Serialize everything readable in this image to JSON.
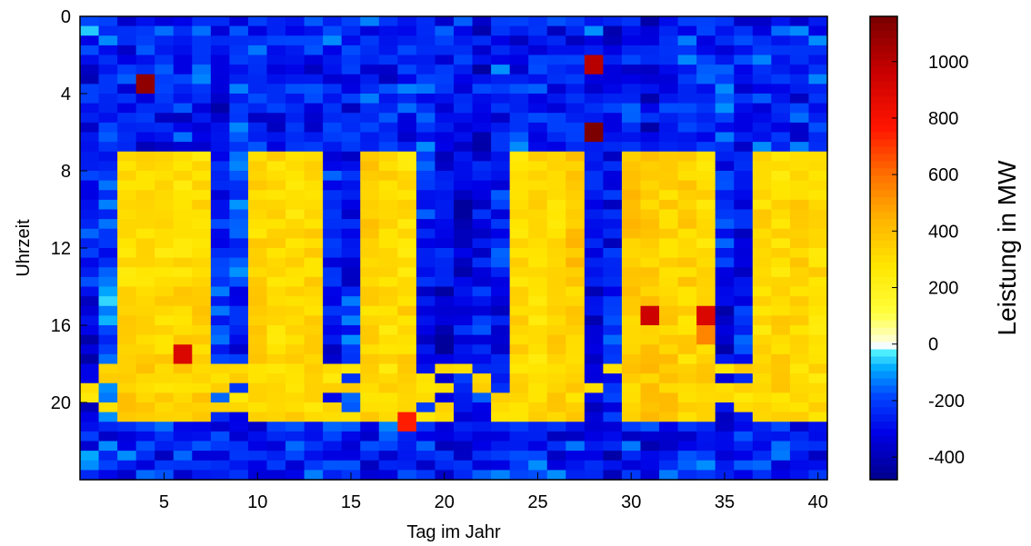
{
  "chart_data": {
    "type": "heatmap",
    "title": "",
    "xlabel": "Tag im Jahr",
    "ylabel": "Uhrzeit",
    "xlim": [
      0.5,
      40.5
    ],
    "ylim": [
      0,
      24
    ],
    "x_ticks": [
      "5",
      "10",
      "15",
      "20",
      "25",
      "30",
      "35",
      "40"
    ],
    "x_tick_values": [
      5,
      10,
      15,
      20,
      25,
      30,
      35,
      40
    ],
    "y_ticks": [
      "0",
      "4",
      "8",
      "12",
      "16",
      "20"
    ],
    "y_tick_values": [
      0,
      4,
      8,
      12,
      16,
      20
    ],
    "y_reversed": true,
    "colorbar": {
      "label": "Leistung in MW",
      "range": [
        -480,
        1160
      ],
      "ticks": [
        "-400",
        "-200",
        "0",
        "200",
        "400",
        "600",
        "800",
        "1000"
      ],
      "tick_values": [
        -400,
        -200,
        0,
        200,
        400,
        600,
        800,
        1000
      ],
      "colormap": "jet with white near 0"
    },
    "day_count": 40,
    "intervals_per_day": 48,
    "day_profile": [
      {
        "day": 1,
        "band": [
          -250,
          -350
        ],
        "sub": [
          -250,
          -150,
          -350
        ]
      },
      {
        "day": 2,
        "band": [
          -200,
          -150
        ],
        "sub": [
          -300,
          -200,
          -250
        ]
      },
      {
        "day": 3,
        "band": [
          300,
          350
        ],
        "sub": [
          -250,
          -300,
          -200
        ]
      },
      {
        "day": 4,
        "band": [
          300,
          350
        ],
        "sub": [
          -350,
          -200,
          -250
        ]
      },
      {
        "day": 5,
        "band": [
          280,
          320
        ],
        "sub": [
          -300,
          -250,
          -200
        ]
      },
      {
        "day": 6,
        "band": [
          300,
          330
        ],
        "sub": [
          -250,
          -300,
          -200
        ]
      },
      {
        "day": 7,
        "band": [
          300,
          340
        ],
        "sub": [
          -250,
          -200,
          -300
        ]
      },
      {
        "day": 8,
        "band": [
          -250,
          -200
        ],
        "sub": [
          -300,
          -250,
          -350
        ]
      },
      {
        "day": 9,
        "band": [
          -200,
          -300
        ],
        "sub": [
          -250,
          -300,
          -200
        ]
      },
      {
        "day": 10,
        "band": [
          320,
          340
        ],
        "sub": [
          -300,
          -200,
          -250
        ]
      },
      {
        "day": 11,
        "band": [
          320,
          300
        ],
        "sub": [
          -250,
          -300,
          -200
        ]
      },
      {
        "day": 12,
        "band": [
          300,
          320
        ],
        "sub": [
          -200,
          -300,
          -250
        ]
      },
      {
        "day": 13,
        "band": [
          330,
          310
        ],
        "sub": [
          -300,
          -250,
          -200
        ]
      },
      {
        "day": 14,
        "band": [
          -250,
          -300
        ],
        "sub": [
          -250,
          -200,
          -300
        ]
      },
      {
        "day": 15,
        "band": [
          -300,
          -200
        ],
        "sub": [
          -300,
          -250,
          -200
        ]
      },
      {
        "day": 16,
        "band": [
          350,
          320
        ],
        "sub": [
          -250,
          -300,
          -200
        ]
      },
      {
        "day": 17,
        "band": [
          320,
          300
        ],
        "sub": [
          -200,
          -250,
          -300
        ]
      },
      {
        "day": 18,
        "band": [
          300,
          330
        ],
        "sub": [
          -250,
          -200,
          -300
        ]
      },
      {
        "day": 19,
        "band": [
          -250,
          -300
        ],
        "sub": [
          -300,
          -250,
          -200
        ]
      },
      {
        "day": 20,
        "band": [
          -300,
          -400
        ],
        "sub": [
          -250,
          -350,
          -300
        ]
      },
      {
        "day": 21,
        "band": [
          -350,
          -300
        ],
        "sub": [
          -300,
          -250,
          -350
        ]
      },
      {
        "day": 22,
        "band": [
          -300,
          -250
        ],
        "sub": [
          -350,
          -300,
          -250
        ]
      },
      {
        "day": 23,
        "band": [
          -250,
          -300
        ],
        "sub": [
          -200,
          -250,
          -300
        ]
      },
      {
        "day": 24,
        "band": [
          300,
          320
        ],
        "sub": [
          -250,
          -300,
          -200
        ]
      },
      {
        "day": 25,
        "band": [
          320,
          300
        ],
        "sub": [
          -300,
          -250,
          -200
        ]
      },
      {
        "day": 26,
        "band": [
          300,
          340
        ],
        "sub": [
          -250,
          -200,
          -300
        ]
      },
      {
        "day": 27,
        "band": [
          380,
          330
        ],
        "sub": [
          -300,
          -200,
          -250
        ]
      },
      {
        "day": 28,
        "band": [
          -300,
          -350
        ],
        "sub": [
          -250,
          -300,
          -200
        ]
      },
      {
        "day": 29,
        "band": [
          -300,
          -250
        ],
        "sub": [
          -350,
          -300,
          -250
        ]
      },
      {
        "day": 30,
        "band": [
          380,
          350
        ],
        "sub": [
          -250,
          -300,
          -200
        ]
      },
      {
        "day": 31,
        "band": [
          350,
          380
        ],
        "sub": [
          -300,
          -250,
          -350
        ]
      },
      {
        "day": 32,
        "band": [
          330,
          360
        ],
        "sub": [
          -250,
          -300,
          -200
        ]
      },
      {
        "day": 33,
        "band": [
          340,
          320
        ],
        "sub": [
          -300,
          -200,
          -250
        ]
      },
      {
        "day": 34,
        "band": [
          300,
          340
        ],
        "sub": [
          -250,
          -300,
          -200
        ]
      },
      {
        "day": 35,
        "band": [
          -250,
          -350
        ],
        "sub": [
          -300,
          -250,
          -200
        ]
      },
      {
        "day": 36,
        "band": [
          -300,
          -250
        ],
        "sub": [
          -350,
          -300,
          -250
        ]
      },
      {
        "day": 37,
        "band": [
          320,
          300
        ],
        "sub": [
          -250,
          -300,
          -200
        ]
      },
      {
        "day": 38,
        "band": [
          300,
          330
        ],
        "sub": [
          -300,
          -250,
          -200
        ]
      },
      {
        "day": 39,
        "band": [
          330,
          310
        ],
        "sub": [
          -250,
          -200,
          -300
        ]
      },
      {
        "day": 40,
        "band": [
          310,
          300
        ],
        "sub": [
          -300,
          -250,
          -200
        ]
      }
    ],
    "highlights": [
      {
        "day": 4,
        "hour": 3,
        "value": 1100
      },
      {
        "day": 28,
        "hour": 2,
        "value": 1000
      },
      {
        "day": 28,
        "hour": 5.5,
        "value": 1150
      },
      {
        "day": 6,
        "hour": 17,
        "value": 900
      },
      {
        "day": 18,
        "hour": 20.5,
        "value": 750
      },
      {
        "day": 31,
        "hour": 15,
        "value": 950
      },
      {
        "day": 34,
        "hour": 15,
        "value": 900
      },
      {
        "day": 34,
        "hour": 16,
        "value": 550
      }
    ]
  }
}
